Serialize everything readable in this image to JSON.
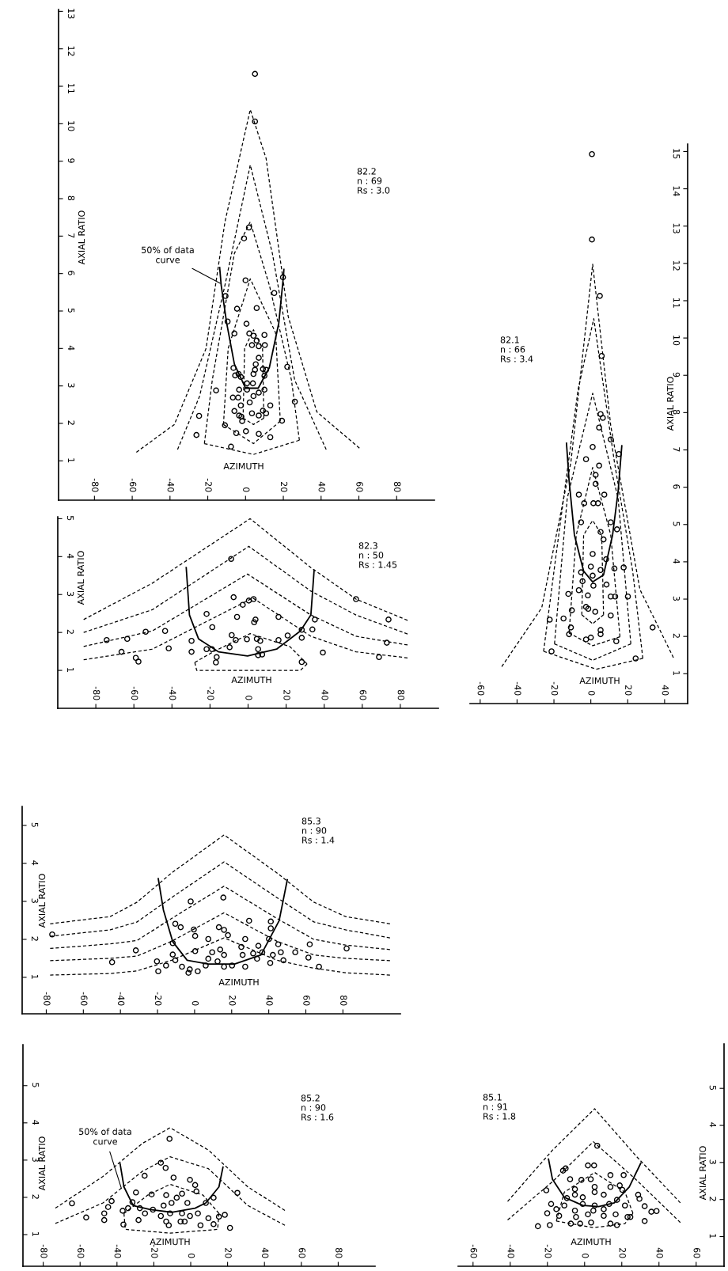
{
  "chart_data": [
    {
      "type": "scatter",
      "xlabel": "AZIMUTH",
      "ylabel": "AXIAL RATIO",
      "xlim": [
        -99,
        100
      ],
      "ylim": [
        -0.05,
        13.05
      ],
      "xticks": [
        -80,
        -60,
        -40,
        -20,
        0,
        20,
        40,
        60,
        80
      ],
      "yticks": [
        1,
        2,
        3,
        4,
        5,
        6,
        7,
        8,
        9,
        10,
        11,
        12,
        13
      ],
      "annotations": [
        "82.2\nn : 69\nRs : 3.0",
        {
          "text": "50% of data\ncurve",
          "x": -13.4,
          "y": 5.74
        }
      ],
      "series": [
        {
          "marker": "circle",
          "color": "#000000",
          "x": [
            5,
            5,
            1.8,
            -0.8,
            0,
            19.8,
            -10.6,
            15.2,
            -4.5,
            5.9,
            -9.5,
            0.5,
            -5.9,
            2,
            4.2,
            10,
            5.9,
            3.4,
            7,
            10.2,
            7,
            5.4,
            22.1,
            -6.4,
            5,
            9.2,
            10.9,
            4.2,
            -5.5,
            -3.7,
            -2.5,
            10,
            3.9,
            0.8,
            -3.4,
            0.8,
            -15.6,
            10,
            7,
            4.2,
            -6.7,
            -3.9,
            2.2,
            26.1,
            -2.5,
            13.1,
            -5.9,
            9.2,
            3.4,
            10.9,
            -3.4,
            -24.6,
            -2.2,
            7,
            -1.8,
            19.3,
            -10.9,
            -4.9,
            0.2,
            7,
            -26,
            13.1,
            -7.7
          ],
          "values": [
            11.33,
            10.06,
            7.23,
            6.94,
            5.82,
            5.9,
            5.4,
            5.48,
            5.06,
            5.08,
            4.72,
            4.66,
            4.4,
            4.4,
            4.34,
            4.36,
            4.21,
            4.09,
            4.06,
            4.09,
            3.75,
            3.58,
            3.51,
            3.48,
            3.43,
            3.45,
            3.43,
            3.32,
            3.28,
            3.32,
            3.24,
            3.27,
            3.07,
            3.07,
            2.9,
            2.9,
            2.88,
            2.9,
            2.82,
            2.73,
            2.69,
            2.69,
            2.56,
            2.58,
            2.48,
            2.48,
            2.33,
            2.34,
            2.27,
            2.27,
            2.21,
            2.2,
            2.18,
            2.21,
            2.06,
            2.07,
            1.95,
            1.74,
            1.79,
            1.72,
            1.69,
            1.63,
            1.38
          ]
        },
        {
          "type": "line",
          "color": "#000000",
          "line_style": "solid",
          "x": [
            -13.7,
            -12.9,
            -10,
            -5.9,
            0,
            6.7,
            12.6,
            17.6,
            20.1,
            20.3
          ],
          "values": [
            6.16,
            5.69,
            4.68,
            3.58,
            2.94,
            2.94,
            3.49,
            4.68,
            5.95,
            6.11
          ]
        },
        {
          "type": "line",
          "color": "#000000",
          "line_style": "dashed",
          "x": [
            -57.8,
            -37.7,
            -20.9,
            -10.9,
            2.5,
            10.9,
            22.6,
            37.7,
            60.3
          ],
          "values": [
            1.23,
            1.97,
            4.0,
            7.38,
            10.38,
            9.07,
            4.85,
            2.31,
            1.34
          ]
        },
        {
          "type": "line",
          "color": "#000000",
          "line_style": "dashed",
          "x": [
            -36,
            -24.3,
            -10.9,
            2.5,
            14.2,
            26,
            42.7
          ],
          "values": [
            1.3,
            2.73,
            5.69,
            8.9,
            6.54,
            3.16,
            1.3
          ]
        },
        {
          "type": "line",
          "color": "#000000",
          "line_style": "dashed",
          "x": [
            -21.8,
            -17.6,
            -5.9,
            2.5,
            12.6,
            24.3,
            28.5
          ],
          "values": [
            1.46,
            3.16,
            6.54,
            7.38,
            5.69,
            3.16,
            1.55
          ]
        },
        {
          "type": "line",
          "color": "#000000",
          "line_style": "dashed",
          "x": [
            -21.8,
            4.2,
            28.5
          ],
          "values": [
            1.46,
            1.17,
            1.55
          ]
        },
        {
          "type": "line",
          "color": "#000000",
          "line_style": "dashed",
          "x": [
            -11.7,
            -9.2,
            2.5,
            15.9,
            18.4
          ],
          "values": [
            1.97,
            4.0,
            5.86,
            4.42,
            2.06
          ]
        },
        {
          "type": "line",
          "color": "#000000",
          "line_style": "dashed",
          "x": [
            -11.7,
            4.2,
            18.4
          ],
          "values": [
            1.97,
            1.46,
            2.06
          ]
        },
        {
          "type": "line",
          "color": "#000000",
          "line_style": "dashed",
          "x": [
            -1.3,
            -0.5,
            4.2,
            9,
            9.7
          ],
          "values": [
            2.14,
            4.0,
            4.5,
            4.0,
            2.14
          ]
        },
        {
          "type": "line",
          "color": "#000000",
          "line_style": "dashed",
          "x": [
            -1.3,
            4.2,
            9.7
          ],
          "values": [
            2.14,
            1.97,
            2.14
          ]
        }
      ]
    },
    {
      "type": "scatter",
      "xlabel": "AZIMUTH",
      "ylabel": "AXIAL RATIO",
      "xlim": [
        -100,
        100
      ],
      "ylim": [
        0,
        5.05
      ],
      "xticks": [
        -80,
        -60,
        -40,
        -20,
        0,
        20,
        40,
        60,
        80
      ],
      "yticks": [
        1,
        2,
        3,
        4,
        5
      ],
      "annotations": [
        "82.3\nn : 50\nRs : 1.45"
      ],
      "series": [
        {
          "marker": "circle",
          "color": "#000000",
          "x": [
            -8.9,
            -7.6,
            2.9,
            0.4,
            -2.8,
            56.7,
            -21.8,
            -5.8,
            16,
            3.9,
            3.2,
            35.1,
            73.8,
            -18.8,
            -43.6,
            -53.8,
            28.2,
            33.8,
            20.8,
            -8.6,
            -6.5,
            -0.6,
            4.6,
            6.4,
            16,
            28.2,
            -63.5,
            -74.3,
            -29.7,
            72.9,
            -9.7,
            -41.7,
            -21.8,
            -19,
            5.3,
            -66.5,
            -29.7,
            39.3,
            5.3,
            7.4,
            -59,
            68.8,
            -16.5,
            -57.6,
            -16.9,
            28.2
          ],
          "values": [
            3.94,
            2.93,
            2.88,
            2.84,
            2.73,
            2.88,
            2.49,
            2.41,
            2.41,
            2.34,
            2.27,
            2.34,
            2.34,
            2.14,
            2.04,
            2.02,
            2.07,
            2.08,
            1.92,
            1.93,
            1.8,
            1.82,
            1.83,
            1.78,
            1.8,
            1.86,
            1.83,
            1.8,
            1.78,
            1.73,
            1.61,
            1.58,
            1.56,
            1.56,
            1.56,
            1.49,
            1.49,
            1.47,
            1.4,
            1.42,
            1.33,
            1.35,
            1.35,
            1.23,
            1.21,
            1.22
          ]
        },
        {
          "type": "line",
          "color": "#000000",
          "line_style": "solid",
          "x": [
            -32.5,
            -30.8,
            -26,
            -15.6,
            -0.3,
            15,
            27.5,
            33,
            34.7
          ],
          "values": [
            3.71,
            2.46,
            1.83,
            1.49,
            1.38,
            1.56,
            2.04,
            2.46,
            3.64
          ]
        },
        {
          "type": "line",
          "color": "#000000",
          "line_style": "dashed",
          "x": [
            -86.4,
            -50.3,
            1.1,
            33,
            56.7,
            83.8
          ],
          "values": [
            2.34,
            3.3,
            5.0,
            3.71,
            2.88,
            2.32
          ]
        },
        {
          "type": "line",
          "color": "#000000",
          "line_style": "dashed",
          "x": [
            -86.4,
            -50.3,
            0.4,
            33,
            56.7,
            83.8
          ],
          "values": [
            2.0,
            2.6,
            4.27,
            3.09,
            2.46,
            1.96
          ]
        },
        {
          "type": "line",
          "color": "#000000",
          "line_style": "dashed",
          "x": [
            -86.4,
            -50.3,
            -0.3,
            33,
            56.7,
            83.8
          ],
          "values": [
            1.63,
            2.04,
            3.54,
            2.46,
            1.9,
            1.67
          ]
        },
        {
          "type": "line",
          "color": "#000000",
          "line_style": "dashed",
          "x": [
            -86.4,
            -50.3,
            2.5,
            33,
            56.7,
            83.8
          ],
          "values": [
            1.28,
            1.56,
            2.91,
            1.9,
            1.49,
            1.33
          ]
        },
        {
          "type": "line",
          "color": "#000000",
          "line_style": "dashed",
          "x": [
            -28,
            -18.3,
            1.1,
            21.9,
            31
          ],
          "values": [
            1.21,
            1.49,
            1.97,
            1.63,
            1.17
          ]
        },
        {
          "type": "line",
          "color": "#000000",
          "line_style": "dashed",
          "x": [
            -28,
            -27,
            27.5,
            31
          ],
          "values": [
            1.21,
            1.0,
            1.0,
            1.17
          ]
        }
      ]
    },
    {
      "type": "scatter",
      "xlabel": "AZIMUTH",
      "ylabel": "AXIAL RATIO",
      "xlim": [
        -65.5,
        52.5
      ],
      "ylim": [
        0.2,
        15.2
      ],
      "xticks": [
        -60,
        -40,
        -20,
        0,
        20,
        40
      ],
      "yticks": [
        1,
        2,
        3,
        4,
        5,
        6,
        7,
        8,
        9,
        10,
        11,
        12,
        13,
        14,
        15
      ],
      "annotations": [
        "82.1\nn : 66\nRs : 3.4"
      ],
      "series": [
        {
          "marker": "circle",
          "color": "#000000",
          "x": [
            0.6,
            0.6,
            4.9,
            5.9,
            5.3,
            6.5,
            4.5,
            10.8,
            1,
            15.2,
            -2.6,
            4.5,
            2.6,
            2.6,
            -6.5,
            7.3,
            -3.6,
            1.4,
            3.9,
            -5.3,
            10.8,
            5.3,
            14.2,
            6.9,
            1,
            8.3,
            0,
            5.3,
            12.8,
            17.8,
            -5.3,
            1,
            1.4,
            -4.5,
            8.5,
            -6.5,
            -12.2,
            -1.6,
            10.8,
            13.2,
            20.1,
            -2.6,
            -1.4,
            2.4,
            -10.3,
            10.8,
            -14.8,
            -22.3,
            -10.8,
            -11.8,
            5.3,
            5.3,
            -2.6,
            0,
            33.5,
            13.8,
            -21.3,
            24.3
          ],
          "values": [
            14.93,
            12.64,
            11.13,
            9.52,
            7.96,
            7.86,
            7.6,
            7.28,
            7.08,
            6.89,
            6.75,
            6.58,
            6.33,
            6.09,
            5.8,
            5.8,
            5.57,
            5.57,
            5.57,
            5.06,
            5.06,
            4.8,
            4.87,
            4.6,
            4.21,
            4.07,
            3.87,
            3.78,
            3.82,
            3.85,
            3.72,
            3.63,
            3.36,
            3.48,
            3.39,
            3.24,
            3.14,
            3.1,
            3.07,
            3.07,
            3.07,
            2.79,
            2.74,
            2.66,
            2.7,
            2.56,
            2.48,
            2.45,
            2.24,
            2.06,
            2.17,
            2.06,
            1.92,
            1.97,
            2.24,
            1.87,
            1.6,
            1.41
          ]
        },
        {
          "type": "line",
          "color": "#000000",
          "line_style": "solid",
          "x": [
            -13.2,
            -11.8,
            -8.9,
            -3.9,
            1,
            6.9,
            11.8,
            14.8,
            16.8
          ],
          "values": [
            7.18,
            6.19,
            4.72,
            3.75,
            3.46,
            3.65,
            4.72,
            5.89,
            7.11
          ]
        },
        {
          "type": "line",
          "color": "#000000",
          "line_style": "dashed",
          "x": [
            -48.3,
            -26.6,
            -10.8,
            1,
            10.8,
            26.6,
            44.8
          ],
          "values": [
            1.19,
            2.77,
            6.67,
            11.98,
            7.65,
            3.26,
            1.43
          ]
        },
        {
          "type": "line",
          "color": "#000000",
          "line_style": "dashed",
          "x": [
            -25.6,
            -18.7,
            -6.9,
            1.6,
            12.8,
            22.7,
            28.2
          ],
          "values": [
            1.6,
            4.24,
            8.62,
            10.52,
            6.67,
            3.75,
            1.41
          ]
        },
        {
          "type": "line",
          "color": "#000000",
          "line_style": "dashed",
          "x": [
            -25.6,
            3,
            28.2
          ],
          "values": [
            1.6,
            1.12,
            1.41
          ]
        },
        {
          "type": "line",
          "color": "#000000",
          "line_style": "dashed",
          "x": [
            -19.7,
            -12.8,
            1,
            14.8,
            21.7
          ],
          "values": [
            1.8,
            5.7,
            8.52,
            5.7,
            1.8
          ]
        },
        {
          "type": "line",
          "color": "#000000",
          "line_style": "dashed",
          "x": [
            -19.7,
            1,
            21.7
          ],
          "values": [
            1.8,
            1.36,
            1.8
          ]
        },
        {
          "type": "line",
          "color": "#000000",
          "line_style": "dashed",
          "x": [
            -11.8,
            -7.9,
            1,
            10.8,
            15.8
          ],
          "values": [
            2.09,
            4.72,
            6.53,
            4.72,
            1.99
          ]
        },
        {
          "type": "line",
          "color": "#000000",
          "line_style": "dashed",
          "x": [
            -11.8,
            1,
            15.8
          ],
          "values": [
            2.09,
            1.75,
            1.99
          ]
        },
        {
          "type": "line",
          "color": "#000000",
          "line_style": "dashed",
          "x": [
            -4.9,
            -3.9,
            1,
            5.9,
            6.9
          ],
          "values": [
            2.58,
            4.72,
            5.11,
            4.72,
            2.58
          ]
        },
        {
          "type": "line",
          "color": "#000000",
          "line_style": "dashed",
          "x": [
            -4.9,
            1,
            6.9
          ],
          "values": [
            2.58,
            2.34,
            2.58
          ]
        }
      ]
    },
    {
      "type": "scatter",
      "xlabel": "AZIMUTH",
      "ylabel": "AXIAL RATIO",
      "xlim": [
        -93,
        111
      ],
      "ylim": [
        0.04,
        5.5
      ],
      "xticks": [
        -80,
        -60,
        -40,
        -20,
        0,
        20,
        40,
        60,
        80
      ],
      "yticks": [
        1,
        2,
        3,
        4,
        5
      ],
      "annotations": [
        "85.3\nn : 90\nRs : 1.4"
      ],
      "series": [
        {
          "marker": "circle",
          "color": "#000000",
          "x": [
            15.5,
            -2.1,
            29.4,
            41.1,
            -10.4,
            -7.5,
            41.1,
            13.1,
            15.9,
            18,
            -0.4,
            0.3,
            -76.8,
            7.4,
            27.3,
            40.1,
            34.4,
            45.1,
            -11.8,
            -31.7,
            62.1,
            82,
            54.3,
            61.4,
            0.3,
            9.5,
            13.8,
            15.9,
            25.2,
            25.9,
            31.6,
            36.5,
            42.2,
            46.5,
            -11.8,
            -10.4,
            -20.3,
            -44.5,
            7.4,
            12.4,
            20.2,
            6,
            15.9,
            27.3,
            33.7,
            40.8,
            47.9,
            -15.4,
            -6.8,
            -2.6,
            1.7,
            -3.3,
            -19.6,
            67.1
          ],
          "values": [
            3.1,
            3.0,
            2.49,
            2.47,
            2.41,
            2.32,
            2.29,
            2.32,
            2.25,
            2.11,
            2.26,
            2.09,
            2.13,
            2.01,
            2.01,
            2.01,
            1.83,
            1.87,
            1.9,
            1.71,
            1.87,
            1.76,
            1.66,
            1.52,
            1.69,
            1.66,
            1.73,
            1.59,
            1.8,
            1.59,
            1.63,
            1.66,
            1.59,
            1.66,
            1.6,
            1.45,
            1.42,
            1.4,
            1.49,
            1.42,
            1.31,
            1.31,
            1.28,
            1.28,
            1.49,
            1.38,
            1.45,
            1.31,
            1.28,
            1.21,
            1.16,
            1.12,
            1.16,
            1.28
          ]
        },
        {
          "type": "line",
          "color": "#000000",
          "line_style": "solid",
          "x": [
            -19.6,
            -16.8,
            -11.8,
            -4.0,
            7.4,
            21.6,
            35.8,
            45.6,
            50.0
          ],
          "values": [
            3.6,
            2.77,
            1.94,
            1.45,
            1.35,
            1.35,
            1.59,
            2.49,
            3.57
          ]
        },
        {
          "type": "line",
          "color": "#000000",
          "line_style": "dashed",
          "x": [
            -77.9,
            -45.5,
            -31,
            -12.4,
            15.9,
            44.4,
            64.3,
            81.4,
            105.4
          ],
          "values": [
            2.41,
            2.6,
            2.98,
            3.75,
            4.75,
            3.75,
            2.98,
            2.6,
            2.41
          ]
        },
        {
          "type": "line",
          "color": "#000000",
          "line_style": "dashed",
          "x": [
            -77.9,
            -45.5,
            -31,
            -12.4,
            15.9,
            44.4,
            64.3,
            81.4,
            105.4
          ],
          "values": [
            2.08,
            2.25,
            2.46,
            3.1,
            4.04,
            3.1,
            2.46,
            2.25,
            2.04
          ]
        },
        {
          "type": "line",
          "color": "#000000",
          "line_style": "dashed",
          "x": [
            -77.9,
            -45.5,
            -31,
            -12.4,
            15.9,
            44.4,
            64.3,
            81.4,
            105.4
          ],
          "values": [
            1.76,
            1.88,
            1.97,
            2.55,
            3.4,
            2.55,
            2.0,
            1.85,
            1.73
          ]
        },
        {
          "type": "line",
          "color": "#000000",
          "line_style": "dashed",
          "x": [
            -77.9,
            -45.5,
            -31,
            -12.4,
            15.9,
            44.4,
            64.3,
            81.4,
            105.4
          ],
          "values": [
            1.44,
            1.5,
            1.56,
            1.95,
            2.7,
            1.95,
            1.59,
            1.5,
            1.44
          ]
        },
        {
          "type": "line",
          "color": "#000000",
          "line_style": "dashed",
          "x": [
            -77.9,
            -45.5,
            -31,
            -12.4,
            15.9,
            44.4,
            64.3,
            81.4,
            105.4
          ],
          "values": [
            1.06,
            1.1,
            1.17,
            1.45,
            2.04,
            1.45,
            1.24,
            1.12,
            1.06
          ]
        }
      ]
    },
    {
      "type": "scatter",
      "xlabel": "AZIMUTH",
      "ylabel": "AXIAL RATIO",
      "xlim": [
        -91,
        100
      ],
      "ylim": [
        0.15,
        6.1
      ],
      "xticks": [
        -80,
        -60,
        -40,
        -20,
        0,
        20,
        40,
        60,
        80
      ],
      "yticks": [
        1,
        2,
        3,
        4,
        5
      ],
      "annotations": [
        "85.2\nn : 90\nRs : 1.6",
        {
          "text": "50% of data\ncurve",
          "x": -37.6,
          "y": 2.24
        }
      ],
      "series": [
        {
          "marker": "circle",
          "color": "#000000",
          "x": [
            -11.5,
            -16.2,
            -13.6,
            -25,
            -9.3,
            -0.4,
            2.4,
            3.1,
            25.3,
            -29.7,
            -21.2,
            -4.7,
            -13.3,
            8.2,
            12.4,
            -64.4,
            -42.9,
            -44.8,
            -31.6,
            -27.6,
            -20.5,
            -14.7,
            -10.4,
            -7.6,
            -1.8,
            -36.9,
            -34,
            -24.8,
            -16.2,
            -11.2,
            -4.7,
            -0.4,
            3.9,
            9.6,
            15.3,
            18.5,
            -56.7,
            -46.9,
            -46.9,
            -28.3,
            -13.3,
            -3.3,
            5.3,
            12.4,
            -36.5,
            -11.9,
            21.3,
            -5.5
          ],
          "values": [
            3.57,
            2.93,
            2.79,
            2.58,
            2.53,
            2.47,
            2.33,
            2.16,
            2.12,
            2.13,
            2.08,
            2.1,
            2.06,
            1.85,
            1.99,
            1.84,
            1.9,
            1.74,
            1.87,
            1.71,
            1.67,
            1.78,
            1.85,
            1.99,
            1.85,
            1.64,
            1.71,
            1.57,
            1.5,
            1.57,
            1.57,
            1.5,
            1.57,
            1.44,
            1.48,
            1.53,
            1.46,
            1.57,
            1.39,
            1.39,
            1.35,
            1.35,
            1.25,
            1.28,
            1.27,
            1.25,
            1.18,
            1.35
          ]
        },
        {
          "type": "line",
          "color": "#000000",
          "line_style": "solid",
          "x": [
            -38.3,
            -36.2,
            -31.2,
            -21.9,
            -10.4,
            2.4,
            8.2,
            15.3,
            17.5
          ],
          "values": [
            2.9,
            2.28,
            1.78,
            1.67,
            1.6,
            1.71,
            1.85,
            2.28,
            2.81
          ]
        },
        {
          "type": "line",
          "color": "#000000",
          "line_style": "dashed",
          "x": [
            -73.4,
            -47.6,
            -26.2,
            -11.2,
            9.6,
            31.0,
            51.1
          ],
          "values": [
            1.71,
            2.56,
            3.45,
            3.87,
            3.27,
            2.28,
            1.65
          ]
        },
        {
          "type": "line",
          "color": "#000000",
          "line_style": "dashed",
          "x": [
            -73.4,
            -47.6,
            -26.2,
            -11.2,
            9.6,
            31.0,
            51.1
          ],
          "values": [
            1.3,
            1.85,
            2.7,
            3.09,
            2.77,
            1.78,
            1.25
          ]
        },
        {
          "type": "line",
          "color": "#000000",
          "line_style": "dashed",
          "x": [
            -36.2,
            -23.3,
            -11.2,
            6.7,
            15.3
          ],
          "values": [
            1.57,
            2.06,
            2.35,
            2.06,
            1.57
          ]
        },
        {
          "type": "line",
          "color": "#000000",
          "line_style": "dashed",
          "x": [
            -36.2,
            -35.5,
            -11.2,
            14.6,
            15.3
          ],
          "values": [
            1.57,
            1.14,
            1.04,
            1.14,
            1.57
          ]
        }
      ]
    },
    {
      "type": "scatter",
      "xlabel": "AZIMUTH",
      "ylabel": "AXIAL RATIO",
      "xlim": [
        -68,
        75
      ],
      "ylim": [
        0.2,
        6.2
      ],
      "xticks": [
        -60,
        -40,
        -20,
        0,
        20,
        40,
        60
      ],
      "yticks": [
        1,
        2,
        3,
        4,
        5
      ],
      "annotations": [
        "85.1\nn : 91\nRs : 1.8"
      ],
      "series": [
        {
          "marker": "circle",
          "color": "#000000",
          "x": [
            6.8,
            1.8,
            5.1,
            -11.6,
            -10.2,
            -7.8,
            -1.7,
            3.3,
            13.9,
            21,
            5.4,
            13.9,
            18.9,
            20.3,
            -5.2,
            5.4,
            -20.6,
            -9.5,
            -5.2,
            -1,
            10.3,
            17.4,
            28.8,
            29.5,
            -18,
            -10.9,
            -1,
            5.4,
            13.2,
            21.7,
            32.3,
            -15.2,
            -5.2,
            4.7,
            10.3,
            -20.1,
            -13.7,
            -4.6,
            1.8,
            10.3,
            16.7,
            24.6,
            35.9,
            38.7,
            -7.4,
            -2.4,
            3.5,
            13.9,
            17.4,
            32.3,
            -25.1,
            -18.7,
            23.1
          ],
          "values": [
            3.45,
            2.92,
            2.92,
            2.78,
            2.84,
            2.55,
            2.53,
            2.55,
            2.66,
            2.66,
            2.34,
            2.34,
            2.38,
            2.26,
            2.28,
            2.2,
            2.25,
            2.04,
            2.13,
            2.06,
            2.13,
            1.99,
            2.13,
            2.02,
            1.88,
            1.84,
            1.88,
            1.84,
            1.88,
            1.84,
            1.82,
            1.74,
            1.7,
            1.7,
            1.74,
            1.63,
            1.56,
            1.53,
            1.6,
            1.56,
            1.6,
            1.53,
            1.67,
            1.69,
            1.35,
            1.35,
            1.38,
            1.35,
            1.31,
            1.42,
            1.28,
            1.31,
            1.53
          ]
        },
        {
          "type": "line",
          "color": "#000000",
          "line_style": "solid",
          "x": [
            -19.4,
            -17.3,
            -10.9,
            -1.0,
            7.5,
            16.0,
            24.0,
            30.2
          ],
          "values": [
            3.09,
            2.55,
            2.06,
            1.84,
            1.81,
            1.91,
            2.34,
            2.98
          ]
        },
        {
          "type": "line",
          "color": "#000000",
          "line_style": "dashed",
          "x": [
            -41.4,
            -17.3,
            5.4,
            27.4,
            51.5
          ],
          "values": [
            1.95,
            3.33,
            4.45,
            3.19,
            1.91
          ]
        },
        {
          "type": "line",
          "color": "#000000",
          "line_style": "dashed",
          "x": [
            -41.4,
            -17.3,
            4.7,
            27.4,
            51.5
          ],
          "values": [
            1.45,
            2.48,
            3.56,
            2.55,
            1.38
          ]
        },
        {
          "type": "line",
          "color": "#000000",
          "line_style": "dashed",
          "x": [
            -15.2,
            -10.9,
            5.4,
            21.7,
            26.0
          ],
          "values": [
            1.42,
            2.2,
            2.73,
            2.2,
            1.63
          ]
        },
        {
          "type": "line",
          "color": "#000000",
          "line_style": "dashed",
          "x": [
            -15.2,
            4.7,
            21.7,
            26.0
          ],
          "values": [
            1.42,
            1.24,
            1.35,
            1.63
          ]
        }
      ]
    }
  ]
}
